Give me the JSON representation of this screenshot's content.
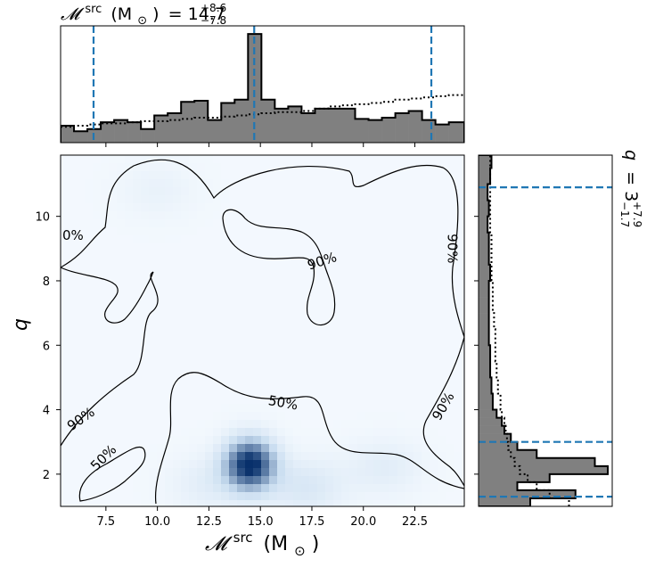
{
  "chart_data": {
    "type": "heatmap",
    "title": {
      "symbol": "𝓜",
      "sup": "src",
      "unit": "(M",
      "unit_sub": "⊙",
      "unit_close": ")",
      "eq": "= 14.7",
      "plus": "+8.6",
      "minus": "−7.8"
    },
    "side_title": {
      "symbol": "q",
      "eq": "= 3",
      "plus": "+7.9",
      "minus": "−1.7"
    },
    "xlabel": {
      "symbol": "𝓜",
      "sup": "src",
      "unit": "(M",
      "unit_sub": "⊙",
      "unit_close": ")"
    },
    "ylabel": "q",
    "xlim": [
      5.3,
      24.9
    ],
    "ylim": [
      1.0,
      11.9
    ],
    "xticks": [
      7.5,
      10.0,
      12.5,
      15.0,
      17.5,
      20.0,
      22.5
    ],
    "xtick_labels": [
      "7.5",
      "10.0",
      "12.5",
      "15.0",
      "17.5",
      "20.0",
      "22.5"
    ],
    "yticks": [
      2,
      4,
      6,
      8,
      10
    ],
    "ytick_labels": [
      "2",
      "4",
      "6",
      "8",
      "10"
    ],
    "density_peaks": [
      {
        "x": 14.5,
        "y": 2.3,
        "weight": 1.0
      },
      {
        "x": 17.2,
        "y": 1.6,
        "weight": 0.18
      },
      {
        "x": 21.0,
        "y": 2.2,
        "weight": 0.12
      },
      {
        "x": 10.0,
        "y": 10.8,
        "weight": 0.07
      },
      {
        "x": 12.5,
        "y": 1.7,
        "weight": 0.12
      }
    ],
    "contour_labels": [
      {
        "text": "0%",
        "x": 5.9,
        "y": 9.4,
        "angle": 0
      },
      {
        "text": "90%",
        "x": 18.0,
        "y": 8.6,
        "angle": -18
      },
      {
        "text": "90%",
        "x": 24.3,
        "y": 9.0,
        "angle": 90
      },
      {
        "text": "90%",
        "x": 6.3,
        "y": 3.7,
        "angle": -35
      },
      {
        "text": "50%",
        "x": 16.1,
        "y": 4.2,
        "angle": 10
      },
      {
        "text": "90%",
        "x": 23.9,
        "y": 4.1,
        "angle": -60
      },
      {
        "text": "50%",
        "x": 7.4,
        "y": 2.5,
        "angle": -45
      }
    ],
    "x_credible_interval": [
      6.9,
      14.7,
      23.3
    ],
    "y_credible_interval": [
      1.3,
      3.0,
      10.9
    ],
    "x_marginal": {
      "edges": [
        5.3,
        5.95,
        6.6,
        7.25,
        7.9,
        8.55,
        9.2,
        9.85,
        10.5,
        11.15,
        11.8,
        12.45,
        13.1,
        13.75,
        14.4,
        15.05,
        15.7,
        16.35,
        17.0,
        17.65,
        18.3,
        18.95,
        19.6,
        20.25,
        20.9,
        21.55,
        22.2,
        22.85,
        23.5,
        24.15,
        24.9
      ],
      "counts": [
        0.15,
        0.1,
        0.12,
        0.18,
        0.2,
        0.18,
        0.12,
        0.24,
        0.26,
        0.36,
        0.37,
        0.2,
        0.35,
        0.38,
        0.96,
        0.38,
        0.3,
        0.32,
        0.26,
        0.3,
        0.3,
        0.3,
        0.21,
        0.2,
        0.22,
        0.26,
        0.28,
        0.2,
        0.16,
        0.18
      ],
      "prior": [
        0.14,
        0.15,
        0.16,
        0.17,
        0.17,
        0.18,
        0.19,
        0.19,
        0.2,
        0.21,
        0.22,
        0.22,
        0.23,
        0.24,
        0.25,
        0.26,
        0.27,
        0.27,
        0.28,
        0.3,
        0.32,
        0.33,
        0.34,
        0.35,
        0.36,
        0.38,
        0.39,
        0.4,
        0.41,
        0.42
      ]
    },
    "y_marginal": {
      "edges": [
        1.0,
        1.25,
        1.5,
        1.75,
        2.0,
        2.25,
        2.5,
        2.75,
        3.0,
        3.25,
        3.5,
        3.75,
        4.0,
        4.5,
        5.0,
        5.5,
        6.0,
        6.5,
        7.0,
        7.5,
        8.0,
        8.5,
        9.0,
        9.5,
        10.0,
        10.5,
        11.0,
        11.5,
        11.9
      ],
      "counts": [
        0.4,
        0.75,
        0.3,
        0.55,
        1.0,
        0.9,
        0.45,
        0.3,
        0.25,
        0.2,
        0.18,
        0.14,
        0.11,
        0.1,
        0.09,
        0.09,
        0.08,
        0.08,
        0.08,
        0.08,
        0.09,
        0.08,
        0.08,
        0.07,
        0.08,
        0.07,
        0.09,
        0.1
      ],
      "prior": [
        0.7,
        0.55,
        0.45,
        0.38,
        0.32,
        0.28,
        0.25,
        0.23,
        0.22,
        0.21,
        0.2,
        0.18,
        0.17,
        0.15,
        0.14,
        0.13,
        0.13,
        0.12,
        0.11,
        0.11,
        0.1,
        0.1,
        0.1,
        0.09,
        0.09,
        0.09,
        0.09,
        0.09
      ]
    },
    "colors": {
      "hist_fill": "#808080",
      "interval_line": "#1f77b4",
      "density_dark": "#08306b",
      "density_light": "#f7fbff"
    }
  }
}
